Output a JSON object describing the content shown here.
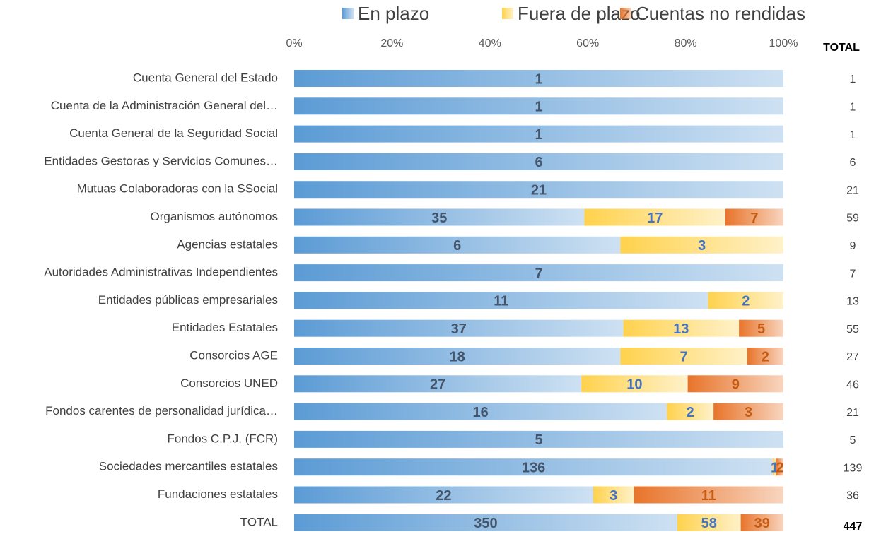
{
  "chart_data": {
    "type": "bar",
    "orientation": "horizontal",
    "stacked": "percent",
    "categories": [
      "Cuenta General del Estado",
      "Cuenta de la Administración General del…",
      "Cuenta General de la Seguridad Social",
      "Entidades Gestoras y Servicios Comunes…",
      "Mutuas Colaboradoras con la SSocial",
      "Organismos autónomos",
      "Agencias estatales",
      "Autoridades Administrativas Independientes",
      "Entidades públicas empresariales",
      "Entidades Estatales",
      "Consorcios AGE",
      "Consorcios UNED",
      "Fondos carentes de personalidad jurídica…",
      "Fondos C.P.J. (FCR)",
      "Sociedades mercantiles estatales",
      "Fundaciones estatales",
      "TOTAL"
    ],
    "series": [
      {
        "name": "En plazo",
        "color": "#5b9bd5",
        "label_color": "#44546a",
        "values": [
          1,
          1,
          1,
          6,
          21,
          35,
          6,
          7,
          11,
          37,
          18,
          27,
          16,
          5,
          136,
          22,
          350
        ]
      },
      {
        "name": "Fuera de plazo",
        "color": "#ffd24d",
        "label_color": "#4472c4",
        "values": [
          0,
          0,
          0,
          0,
          0,
          17,
          3,
          0,
          2,
          13,
          7,
          10,
          2,
          0,
          1,
          3,
          58
        ]
      },
      {
        "name": "Cuentas no rendidas",
        "color": "#e8742a",
        "label_color": "#c55a11",
        "values": [
          0,
          0,
          0,
          0,
          0,
          7,
          0,
          0,
          0,
          5,
          2,
          9,
          3,
          0,
          2,
          11,
          39
        ]
      }
    ],
    "totals_header": "TOTAL",
    "totals": [
      1,
      1,
      1,
      6,
      21,
      59,
      9,
      7,
      13,
      55,
      27,
      46,
      21,
      5,
      139,
      36,
      447
    ],
    "xlim": [
      0,
      100
    ],
    "xticks": [
      {
        "value": 0,
        "label": "0%"
      },
      {
        "value": 20,
        "label": "20%"
      },
      {
        "value": 40,
        "label": "40%"
      },
      {
        "value": 60,
        "label": "60%"
      },
      {
        "value": 80,
        "label": "80%"
      },
      {
        "value": 100,
        "label": "100%"
      }
    ],
    "legend": "top"
  }
}
